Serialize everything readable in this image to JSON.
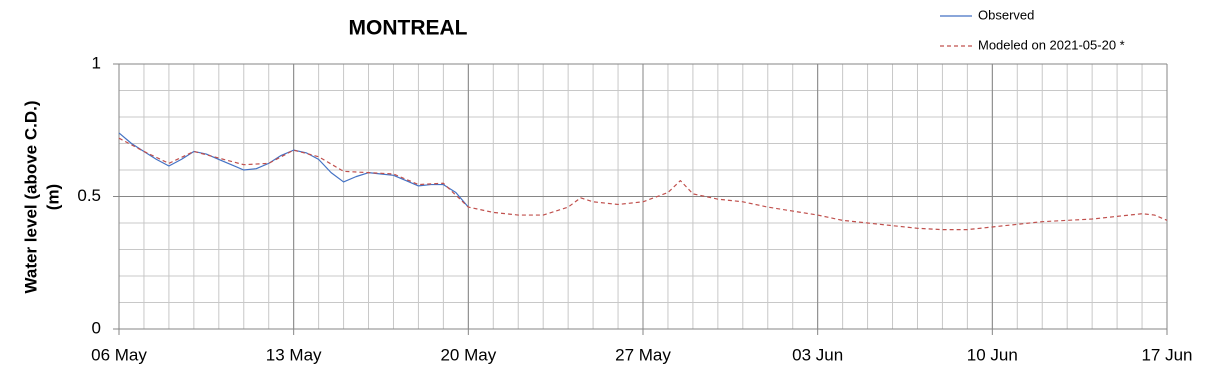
{
  "chart_data": {
    "type": "line",
    "title": "MONTREAL",
    "ylabel": [
      "Water level (above C.D.)",
      "(m)"
    ],
    "xlim": [
      0,
      42
    ],
    "ylim": [
      0,
      1
    ],
    "xticks": [
      {
        "value": 0,
        "label": "06 May"
      },
      {
        "value": 7,
        "label": "13 May"
      },
      {
        "value": 14,
        "label": "20 May"
      },
      {
        "value": 21,
        "label": "27 May"
      },
      {
        "value": 28,
        "label": "03 Jun"
      },
      {
        "value": 35,
        "label": "10 Jun"
      },
      {
        "value": 42,
        "label": "17 Jun"
      }
    ],
    "yticks": [
      0,
      0.5,
      1
    ],
    "grid": true,
    "minor_grid": {
      "x": 1,
      "y": 0.1
    },
    "series": [
      {
        "name": "Observed",
        "color": "#4472c4",
        "dash": false,
        "x": [
          0,
          0.5,
          1,
          1.5,
          2,
          2.5,
          3,
          3.5,
          4,
          4.5,
          5,
          5.5,
          6,
          6.5,
          7,
          7.5,
          8,
          8.5,
          9,
          9.5,
          10,
          10.5,
          11,
          11.5,
          12,
          12.5,
          13,
          13.5,
          14
        ],
        "values": [
          0.74,
          0.7,
          0.67,
          0.64,
          0.615,
          0.64,
          0.67,
          0.66,
          0.64,
          0.62,
          0.6,
          0.605,
          0.625,
          0.655,
          0.675,
          0.665,
          0.64,
          0.59,
          0.555,
          0.575,
          0.59,
          0.585,
          0.58,
          0.56,
          0.54,
          0.545,
          0.545,
          0.515,
          0.46
        ]
      },
      {
        "name": "Modeled on 2021-05-20 *",
        "color": "#c0504d",
        "dash": true,
        "x": [
          0,
          1,
          2,
          3,
          4,
          5,
          6,
          7,
          8,
          9,
          10,
          11,
          12,
          13,
          14,
          15,
          16,
          17,
          18,
          18.5,
          19,
          20,
          21,
          22,
          22.5,
          23,
          24,
          25,
          26,
          27,
          28,
          29,
          30,
          31,
          32,
          33,
          34,
          35,
          36,
          37,
          38,
          39,
          40,
          41,
          41.5,
          42
        ],
        "values": [
          0.72,
          0.67,
          0.625,
          0.67,
          0.645,
          0.62,
          0.625,
          0.675,
          0.65,
          0.595,
          0.59,
          0.585,
          0.545,
          0.55,
          0.46,
          0.44,
          0.43,
          0.43,
          0.46,
          0.495,
          0.48,
          0.47,
          0.48,
          0.515,
          0.56,
          0.51,
          0.49,
          0.48,
          0.46,
          0.445,
          0.43,
          0.41,
          0.4,
          0.39,
          0.38,
          0.375,
          0.375,
          0.385,
          0.395,
          0.405,
          0.41,
          0.415,
          0.425,
          0.435,
          0.43,
          0.41
        ]
      }
    ]
  }
}
